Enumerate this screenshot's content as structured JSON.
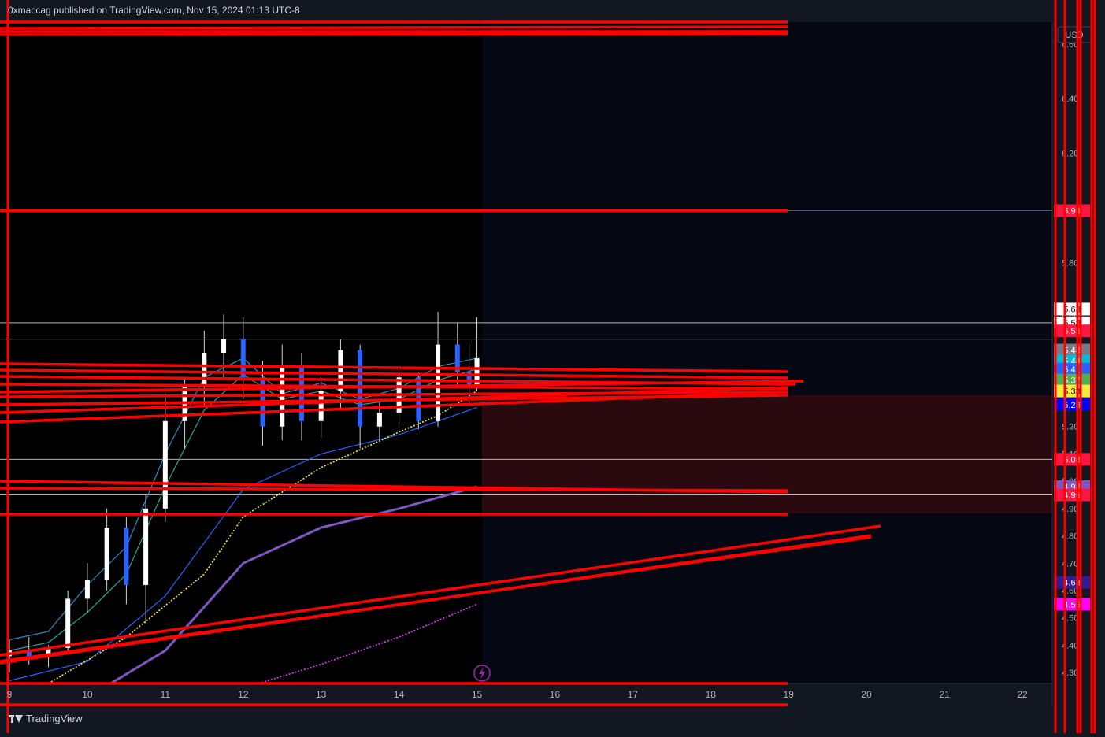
{
  "header": {
    "published_by": "0xmaccag published on TradingView.com, Nov 15, 2024 01:13 UTC-8"
  },
  "brand": {
    "name": "TradingView"
  },
  "price_axis": {
    "currency_label": "USD"
  },
  "colors": {
    "background": "#000000",
    "panel": "#131722",
    "drawing_red": "#ff0000",
    "candle_blue": "#2962ff",
    "ema_cyan": "#26a69a",
    "sma_yellow": "#ffeb3b",
    "sma_purple": "#7e57c2",
    "dotted_magenta": "#e040fb"
  },
  "chart_data": {
    "type": "line",
    "title": "",
    "x_ticks": [
      "9",
      "10",
      "11",
      "12",
      "13",
      "14",
      "15",
      "16",
      "17",
      "18",
      "19",
      "20",
      "21",
      "22"
    ],
    "y_ticks": [
      "4.30",
      "4.40",
      "4.50",
      "4.60",
      "4.70",
      "4.80",
      "4.90",
      "5.00",
      "5.10",
      "5.20",
      "5.40",
      "5.60",
      "5.80",
      "6.00",
      "6.20",
      "6.40",
      "6.60"
    ],
    "ylim": [
      4.26,
      6.68
    ],
    "xlim": [
      9,
      22.4
    ],
    "price_labels": [
      {
        "value": 5.99,
        "text": "5.99",
        "color": "#ff1744"
      },
      {
        "value": 5.63,
        "text": "5.63",
        "color": "#ffffff"
      },
      {
        "value": 5.58,
        "text": "5.58",
        "color": "#ffffff"
      },
      {
        "value": 5.55,
        "text": "5.55",
        "color": "#ff1744"
      },
      {
        "value": 5.48,
        "text": "5.48",
        "color": "#787b86"
      },
      {
        "value": 5.44,
        "text": "5.44",
        "color": "#00bcd4"
      },
      {
        "value": 5.41,
        "text": "5.41",
        "color": "#2962ff"
      },
      {
        "value": 5.37,
        "text": "5.37",
        "color": "#4caf50"
      },
      {
        "value": 5.33,
        "text": "5.33",
        "color": "#ffeb3b"
      },
      {
        "value": 5.28,
        "text": "5.28",
        "color": "#0000ff"
      },
      {
        "value": 5.08,
        "text": "5.08",
        "color": "#ff1744"
      },
      {
        "value": 4.98,
        "text": "4.98",
        "color": "#7e57c2"
      },
      {
        "value": 4.95,
        "text": "4.95",
        "color": "#ff1744"
      },
      {
        "value": 4.63,
        "text": "4.63",
        "color": "#311b92"
      },
      {
        "value": 4.55,
        "text": "4.55",
        "color": "#ff00ff"
      }
    ],
    "horizontal_levels": [
      5.99,
      5.58,
      5.52,
      5.08,
      4.95
    ],
    "series": [
      {
        "kind": "ema_fast",
        "color": "#2e8bc0",
        "x": [
          9.0,
          9.5,
          10.0,
          10.5,
          11.0,
          11.5,
          12.0,
          12.5,
          13.0,
          13.5,
          14.0,
          14.5,
          15.0
        ],
        "values": [
          4.42,
          4.45,
          4.62,
          4.76,
          5.1,
          5.38,
          5.45,
          5.32,
          5.36,
          5.3,
          5.34,
          5.42,
          5.45
        ]
      },
      {
        "kind": "ema_slow",
        "color": "#26a69a",
        "x": [
          9.0,
          9.5,
          10.0,
          10.5,
          11.0,
          11.5,
          12.0,
          12.5,
          13.0,
          13.5,
          14.0,
          14.5,
          15.0
        ],
        "values": [
          4.38,
          4.41,
          4.52,
          4.66,
          4.98,
          5.26,
          5.39,
          5.3,
          5.33,
          5.28,
          5.3,
          5.37,
          5.41
        ]
      },
      {
        "kind": "sma_50",
        "color": "#2962ff",
        "x": [
          9.0,
          10.0,
          11.0,
          12.0,
          13.0,
          14.0,
          15.0
        ],
        "values": [
          4.27,
          4.34,
          4.58,
          4.97,
          5.1,
          5.17,
          5.27
        ]
      },
      {
        "kind": "sma_yellow_dotted",
        "color": "#ffeb3b",
        "x": [
          9.5,
          10.5,
          11.5,
          12.0,
          13.0,
          14.0,
          14.5,
          15.0
        ],
        "values": [
          4.26,
          4.43,
          4.66,
          4.87,
          5.05,
          5.18,
          5.24,
          5.33
        ]
      },
      {
        "kind": "sma_200",
        "color": "#7e57c2",
        "x": [
          10.3,
          11.0,
          12.0,
          13.0,
          14.0,
          15.0
        ],
        "values": [
          4.26,
          4.38,
          4.7,
          4.83,
          4.9,
          4.98
        ]
      },
      {
        "kind": "magenta_dotted",
        "color": "#e040fb",
        "x": [
          12.2,
          13.0,
          14.0,
          15.0
        ],
        "values": [
          4.26,
          4.33,
          4.43,
          4.55
        ]
      }
    ],
    "candles": [
      {
        "x": 9.0,
        "o": 4.36,
        "h": 4.42,
        "l": 4.3,
        "c": 4.38
      },
      {
        "x": 9.25,
        "o": 4.38,
        "h": 4.43,
        "l": 4.33,
        "c": 4.36
      },
      {
        "x": 9.5,
        "o": 4.36,
        "h": 4.4,
        "l": 4.32,
        "c": 4.39
      },
      {
        "x": 9.75,
        "o": 4.39,
        "h": 4.6,
        "l": 4.37,
        "c": 4.57
      },
      {
        "x": 10.0,
        "o": 4.57,
        "h": 4.7,
        "l": 4.52,
        "c": 4.64
      },
      {
        "x": 10.25,
        "o": 4.64,
        "h": 4.9,
        "l": 4.6,
        "c": 4.83
      },
      {
        "x": 10.5,
        "o": 4.83,
        "h": 4.87,
        "l": 4.55,
        "c": 4.62
      },
      {
        "x": 10.75,
        "o": 4.62,
        "h": 4.95,
        "l": 4.48,
        "c": 4.9
      },
      {
        "x": 11.0,
        "o": 4.9,
        "h": 5.32,
        "l": 4.85,
        "c": 5.22
      },
      {
        "x": 11.25,
        "o": 5.22,
        "h": 5.38,
        "l": 5.12,
        "c": 5.35
      },
      {
        "x": 11.5,
        "o": 5.35,
        "h": 5.55,
        "l": 5.27,
        "c": 5.47
      },
      {
        "x": 11.75,
        "o": 5.47,
        "h": 5.61,
        "l": 5.38,
        "c": 5.52
      },
      {
        "x": 12.0,
        "o": 5.52,
        "h": 5.6,
        "l": 5.3,
        "c": 5.38
      },
      {
        "x": 12.25,
        "o": 5.38,
        "h": 5.44,
        "l": 5.13,
        "c": 5.2
      },
      {
        "x": 12.5,
        "o": 5.2,
        "h": 5.5,
        "l": 5.15,
        "c": 5.42
      },
      {
        "x": 12.75,
        "o": 5.42,
        "h": 5.47,
        "l": 5.15,
        "c": 5.22
      },
      {
        "x": 13.0,
        "o": 5.22,
        "h": 5.38,
        "l": 5.16,
        "c": 5.33
      },
      {
        "x": 13.25,
        "o": 5.33,
        "h": 5.52,
        "l": 5.26,
        "c": 5.48
      },
      {
        "x": 13.5,
        "o": 5.48,
        "h": 5.5,
        "l": 5.12,
        "c": 5.2
      },
      {
        "x": 13.75,
        "o": 5.2,
        "h": 5.3,
        "l": 5.15,
        "c": 5.25
      },
      {
        "x": 14.0,
        "o": 5.25,
        "h": 5.42,
        "l": 5.2,
        "c": 5.38
      },
      {
        "x": 14.25,
        "o": 5.38,
        "h": 5.4,
        "l": 5.19,
        "c": 5.22
      },
      {
        "x": 14.5,
        "o": 5.22,
        "h": 5.62,
        "l": 5.2,
        "c": 5.5
      },
      {
        "x": 14.75,
        "o": 5.5,
        "h": 5.58,
        "l": 5.35,
        "c": 5.4
      },
      {
        "x": 14.9,
        "o": 5.4,
        "h": 5.5,
        "l": 5.28,
        "c": 5.35
      },
      {
        "x": 15.0,
        "o": 5.35,
        "h": 5.6,
        "l": 5.33,
        "c": 5.45
      }
    ]
  }
}
